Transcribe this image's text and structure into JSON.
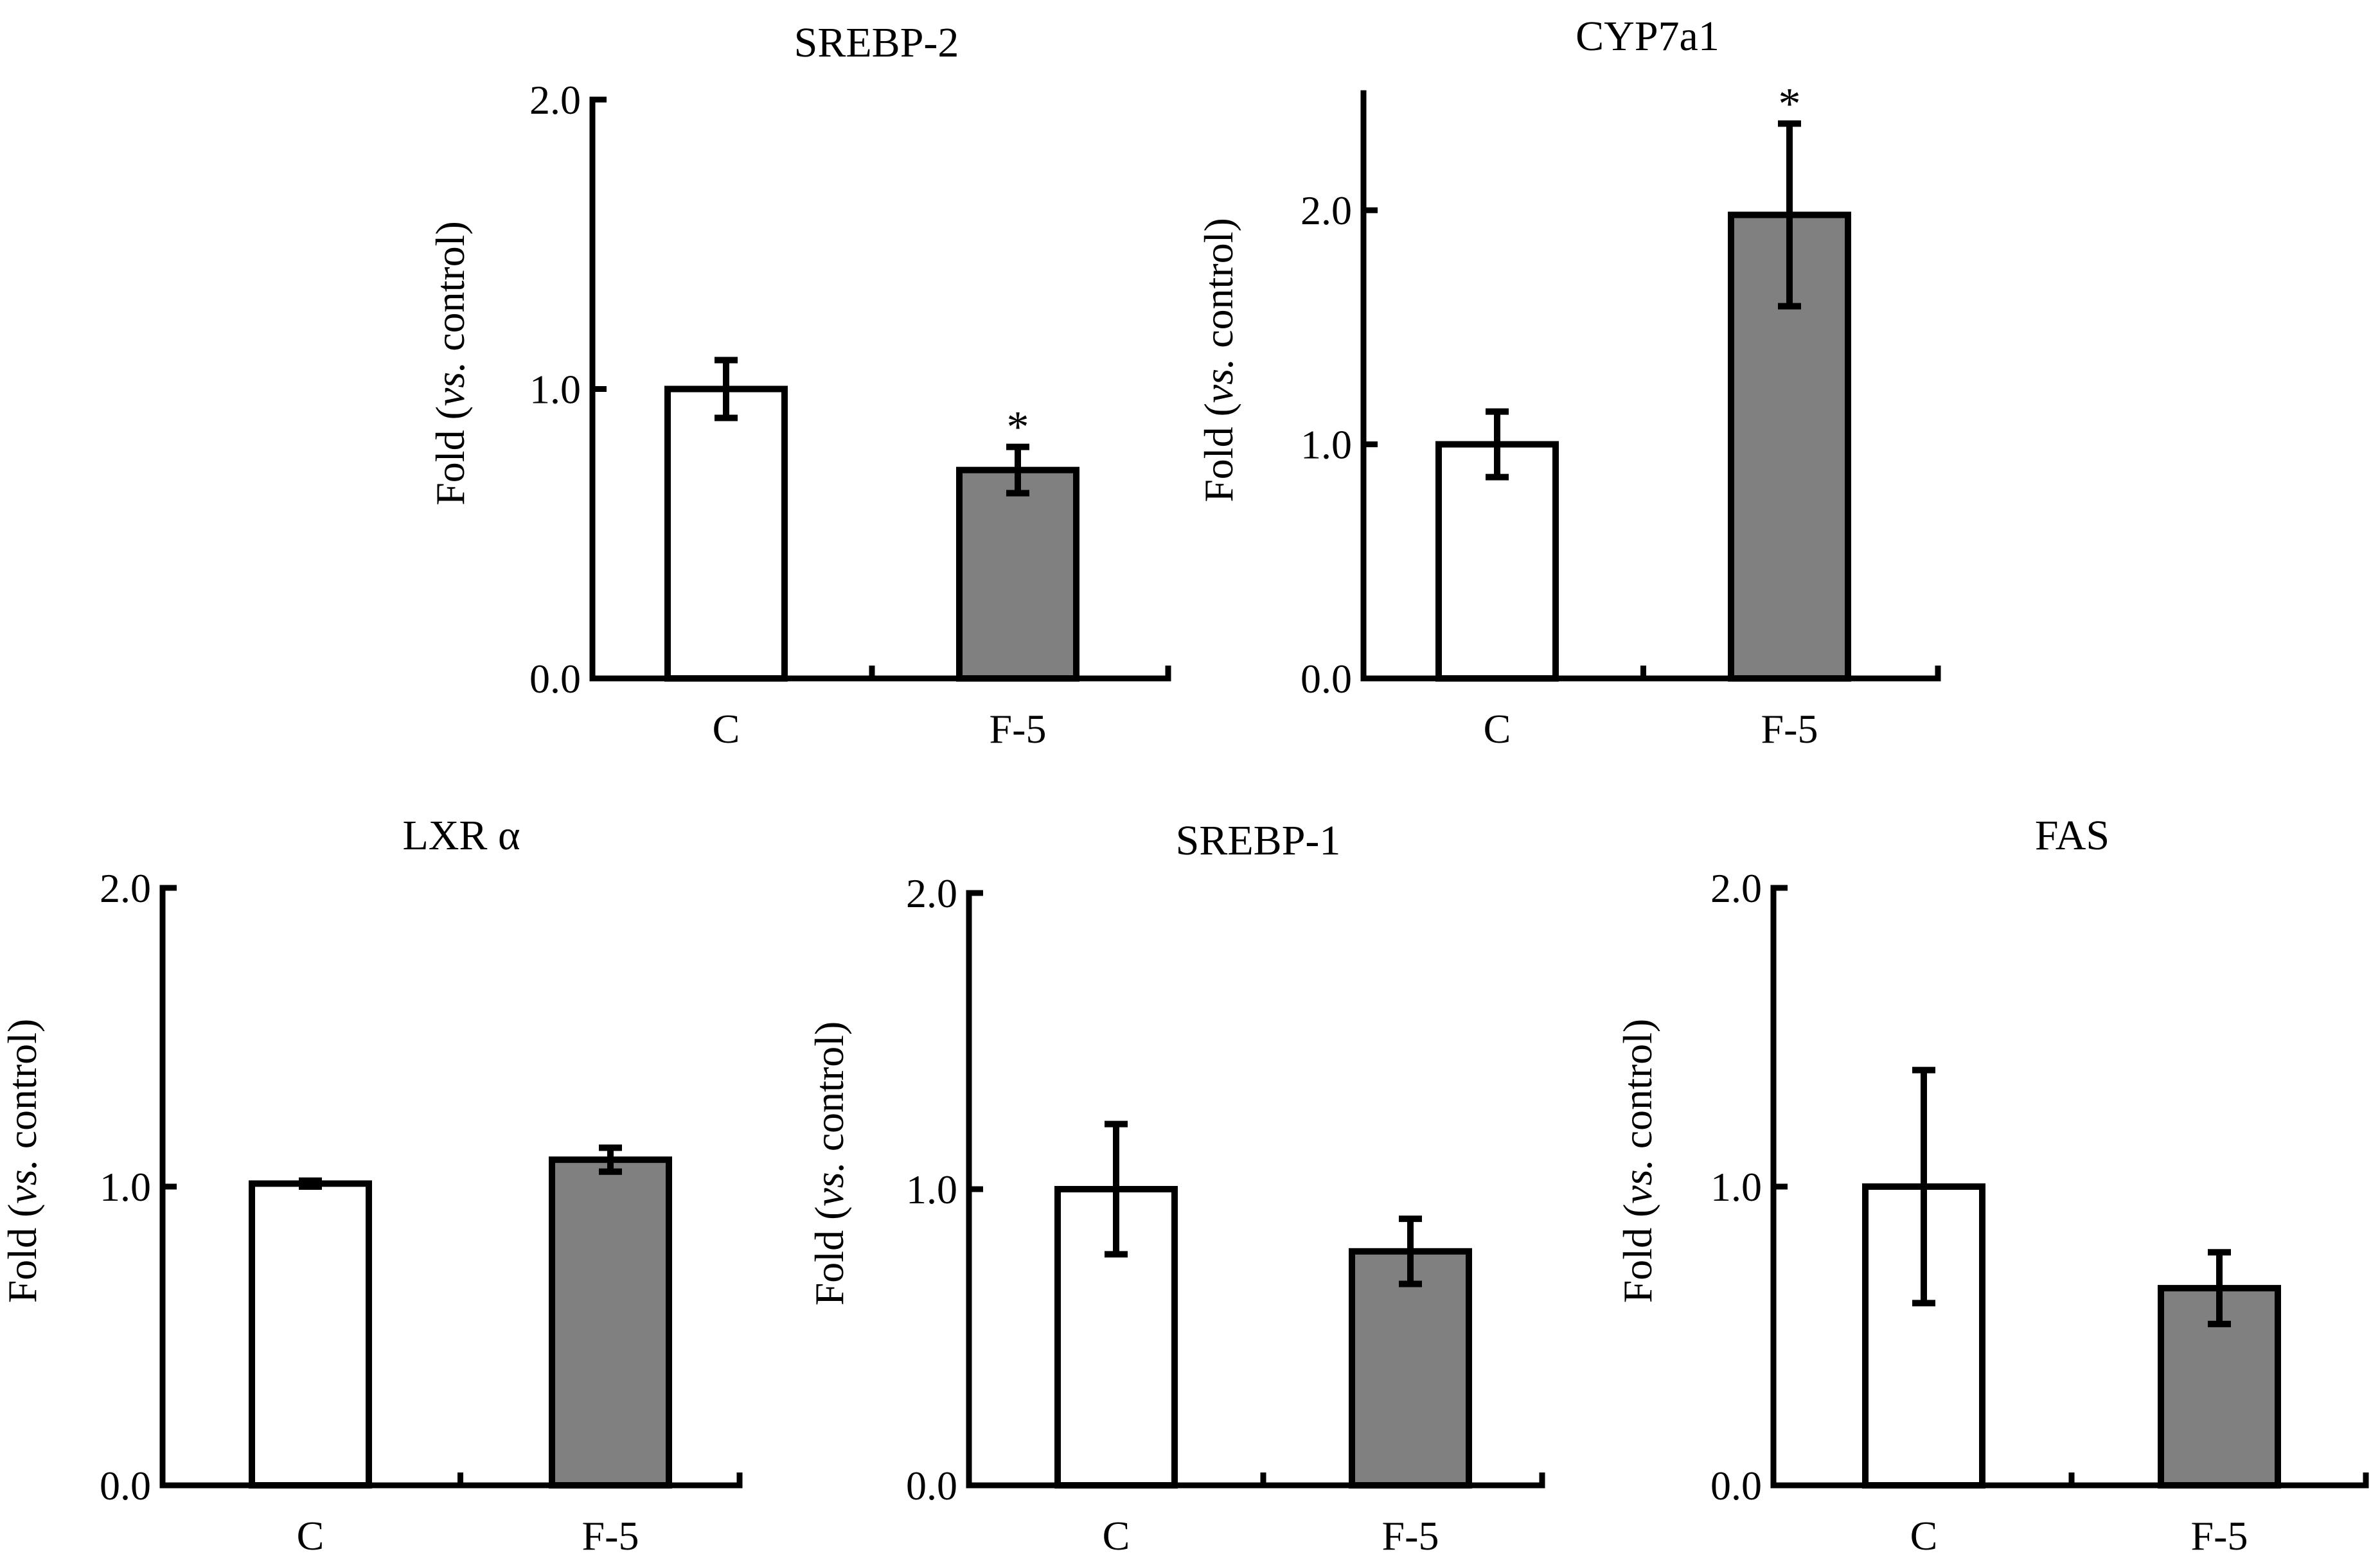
{
  "figure": {
    "background": "#ffffff"
  },
  "colors": {
    "control": "#ffffff",
    "treatment": "#808080",
    "stroke": "#000000"
  },
  "ylabel": {
    "prefix": "Fold (",
    "italic": "vs.",
    "suffix": " control)"
  },
  "chart_data": [
    {
      "type": "bar",
      "title": "SREBP-2",
      "categories": [
        "C",
        "F-5"
      ],
      "values": [
        1.0,
        0.72
      ],
      "errors": [
        0.1,
        0.08
      ],
      "significance": [
        "",
        "*"
      ],
      "ylim": [
        0,
        2.0
      ],
      "yticks": [
        "0.0",
        "1.0",
        "2.0"
      ],
      "ylabel": "Fold (vs. control)"
    },
    {
      "type": "bar",
      "title": "CYP7a1",
      "categories": [
        "C",
        "F-5"
      ],
      "values": [
        1.0,
        1.98
      ],
      "errors": [
        0.14,
        0.39
      ],
      "significance": [
        "",
        "*"
      ],
      "ylim": [
        0,
        2.5
      ],
      "yticks": [
        "0.0",
        "1.0",
        "2.0"
      ],
      "ylabel": "Fold (vs. control)"
    },
    {
      "type": "bar",
      "title": "LXR α",
      "categories": [
        "C",
        "F-5"
      ],
      "values": [
        1.01,
        1.09
      ],
      "errors": [
        0.01,
        0.04
      ],
      "significance": [
        "",
        ""
      ],
      "ylim": [
        0,
        2.0
      ],
      "yticks": [
        "0.0",
        "1.0",
        "2.0"
      ],
      "ylabel": "Fold (vs. control)"
    },
    {
      "type": "bar",
      "title": "SREBP-1",
      "categories": [
        "C",
        "F-5"
      ],
      "values": [
        1.0,
        0.79
      ],
      "errors": [
        0.22,
        0.11
      ],
      "significance": [
        "",
        ""
      ],
      "ylim": [
        0,
        2.0
      ],
      "yticks": [
        "0.0",
        "1.0",
        "2.0"
      ],
      "ylabel": "Fold (vs. control)"
    },
    {
      "type": "bar",
      "title": "FAS",
      "categories": [
        "C",
        "F-5"
      ],
      "values": [
        1.0,
        0.66
      ],
      "errors": [
        0.39,
        0.12
      ],
      "significance": [
        "",
        ""
      ],
      "ylim": [
        0,
        2.0
      ],
      "yticks": [
        "0.0",
        "1.0",
        "2.0"
      ],
      "ylabel": "Fold (vs. control)"
    }
  ]
}
